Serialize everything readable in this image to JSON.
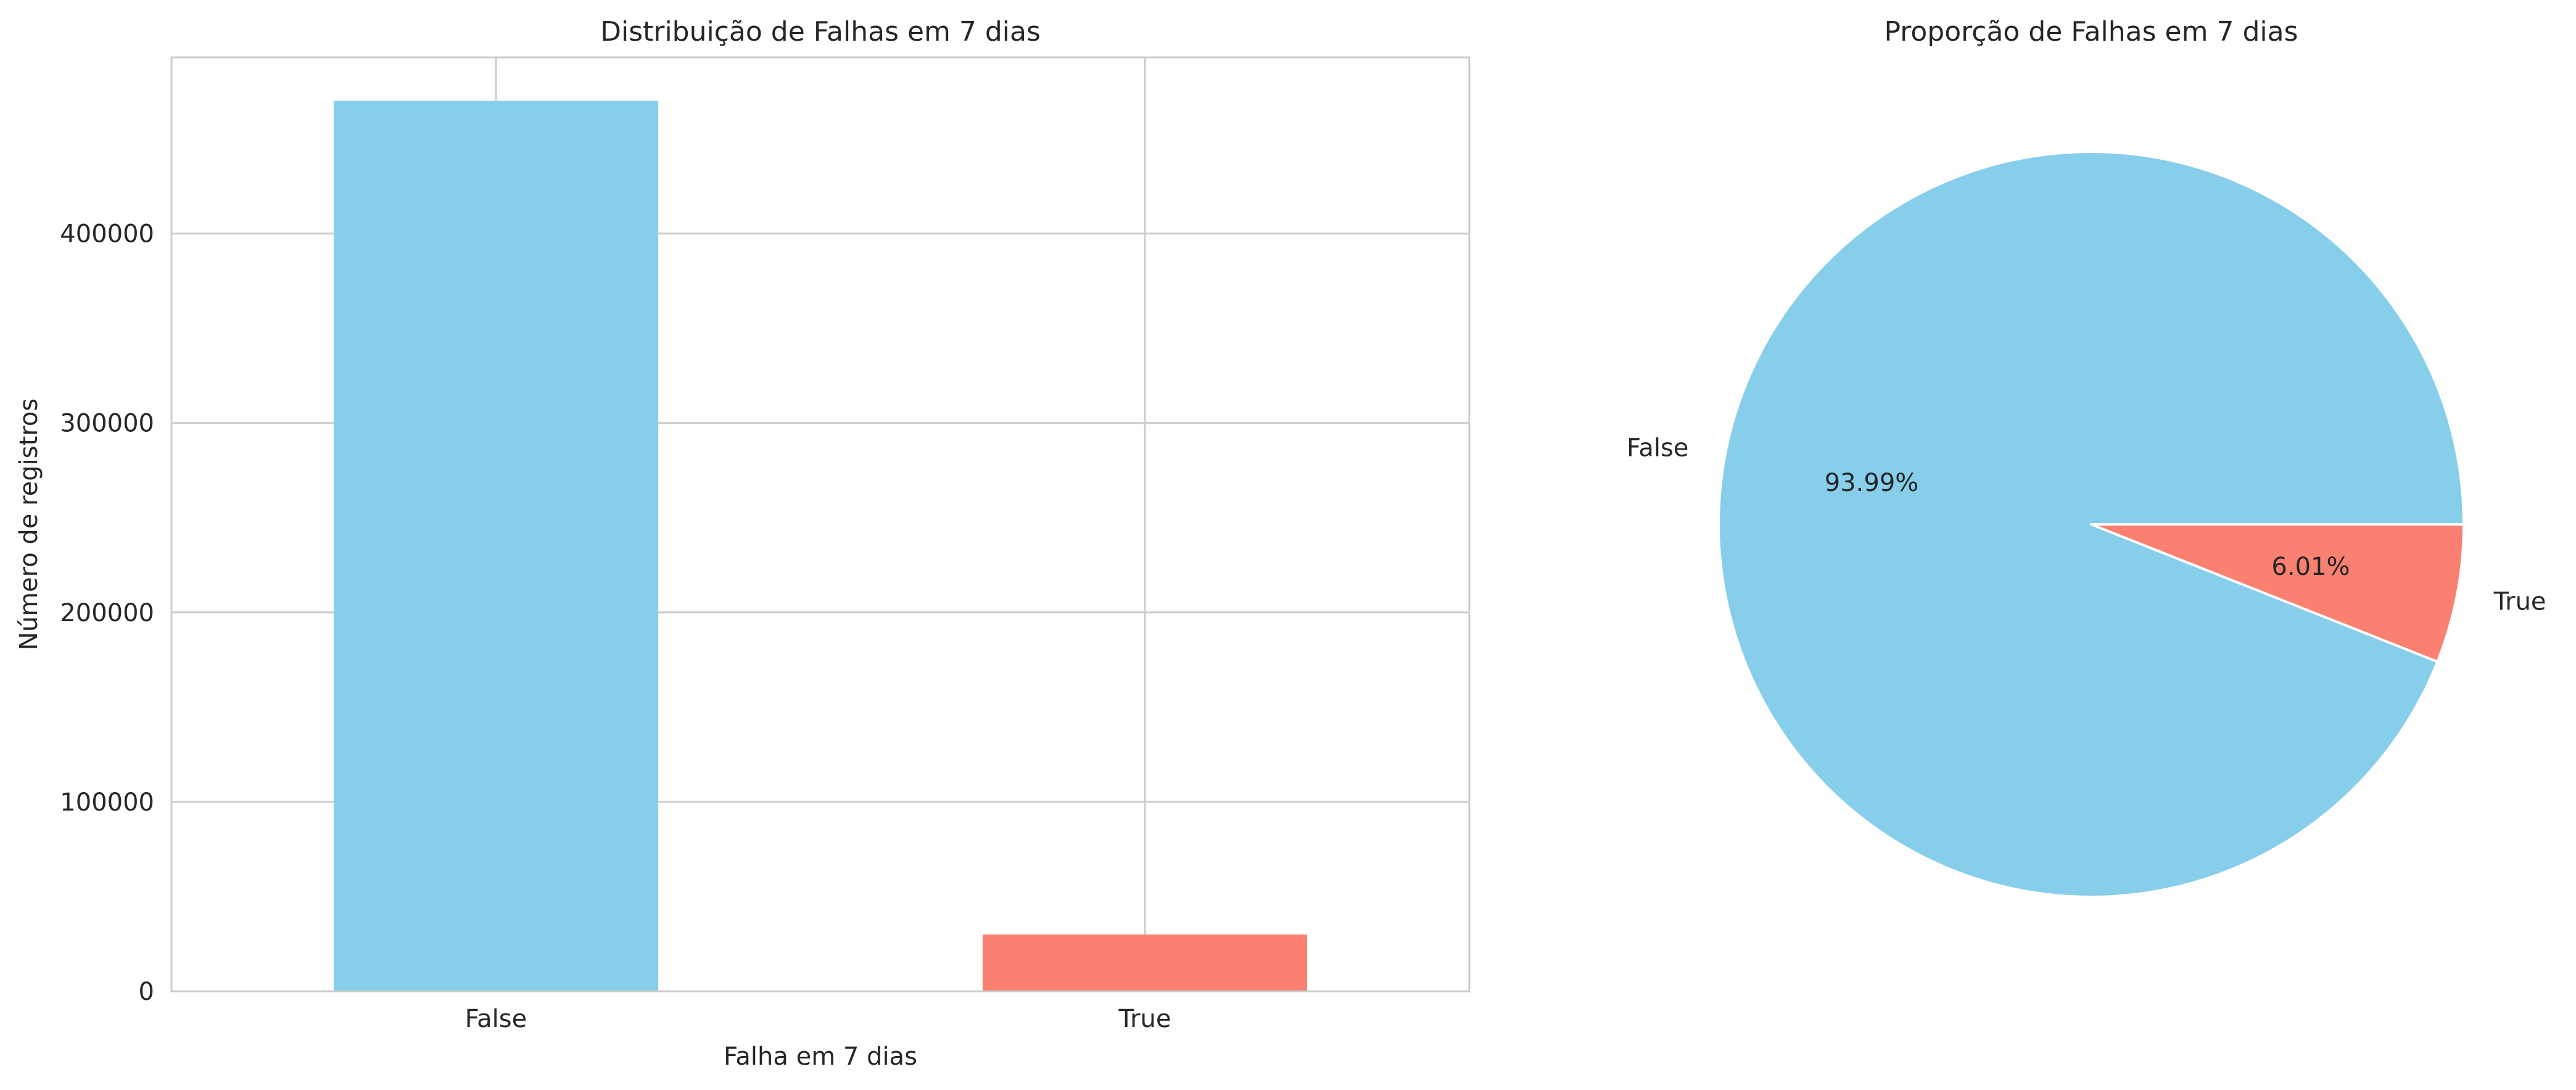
{
  "chart_data": [
    {
      "type": "bar",
      "title": "Distribuição de Falhas em 7 dias",
      "xlabel": "Falha em 7 dias",
      "ylabel": "Número de registros",
      "categories": [
        "False",
        "True"
      ],
      "values": [
        470000,
        30000
      ],
      "colors": [
        "#87CEEB",
        "#FA8072"
      ],
      "ylim": [
        0,
        493000
      ],
      "yticks": [
        0,
        100000,
        200000,
        300000,
        400000
      ],
      "ytick_labels": [
        "0",
        "100000",
        "200000",
        "300000",
        "400000"
      ],
      "grid": true
    },
    {
      "type": "pie",
      "title": "Proporção de Falhas em 7 dias",
      "labels": [
        "False",
        "True"
      ],
      "values": [
        93.99,
        6.01
      ],
      "pct_labels": [
        "93.99%",
        "6.01%"
      ],
      "colors": [
        "#87CEEB",
        "#FA8072"
      ]
    }
  ]
}
